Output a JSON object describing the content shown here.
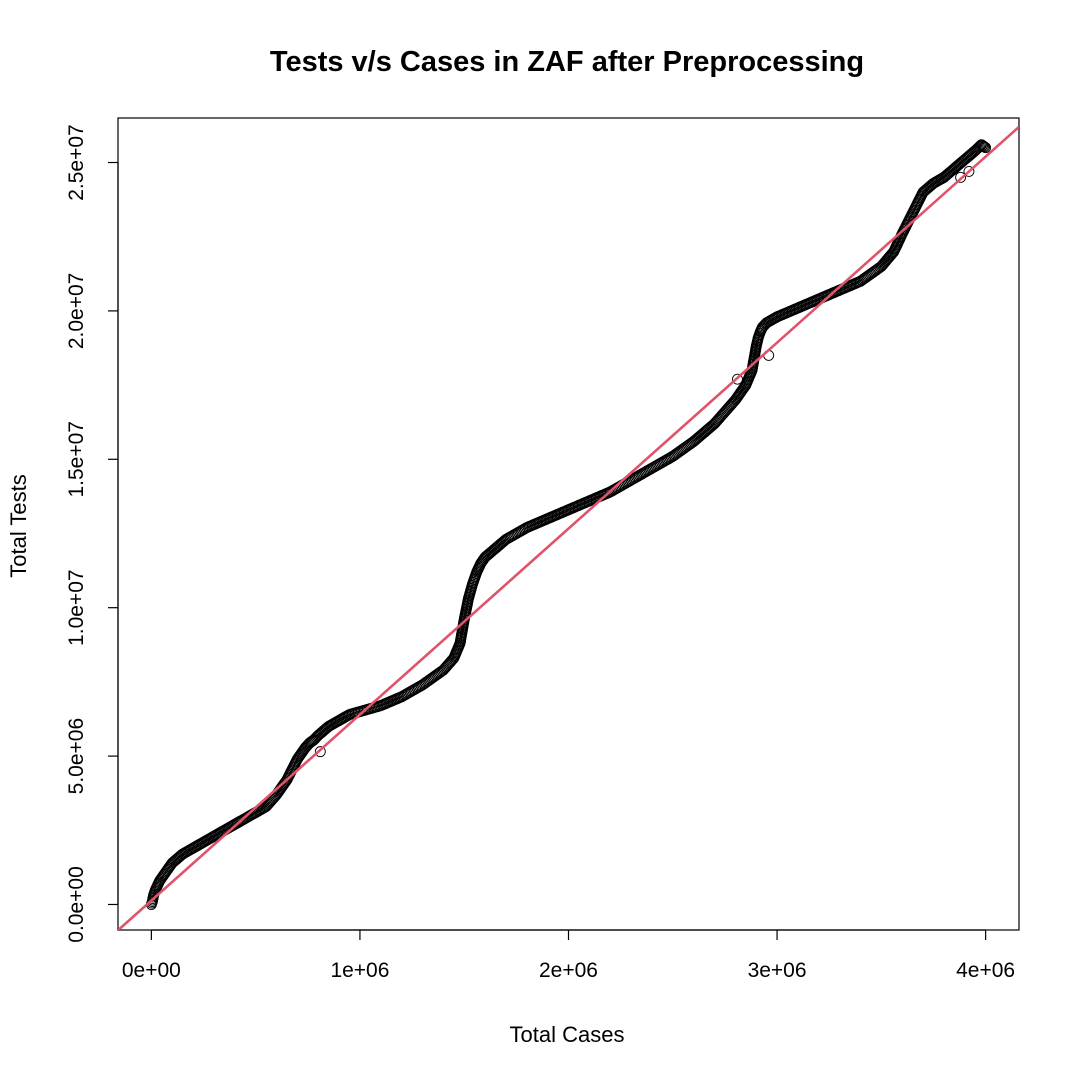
{
  "chart_data": {
    "type": "scatter",
    "title": "Tests v/s Cases in ZAF after Preprocessing",
    "xlabel": "Total Cases",
    "ylabel": "Total Tests",
    "xlim": [
      -160000,
      4160000
    ],
    "ylim": [
      -860000,
      26500000
    ],
    "x_ticks": [
      {
        "value": 0,
        "label": "0e+00"
      },
      {
        "value": 1000000,
        "label": "1e+06"
      },
      {
        "value": 2000000,
        "label": "2e+06"
      },
      {
        "value": 3000000,
        "label": "3e+06"
      },
      {
        "value": 4000000,
        "label": "4e+06"
      }
    ],
    "y_ticks": [
      {
        "value": 0,
        "label": "0.0e+00"
      },
      {
        "value": 5000000,
        "label": "5.0e+06"
      },
      {
        "value": 10000000,
        "label": "1.0e+07"
      },
      {
        "value": 15000000,
        "label": "1.5e+07"
      },
      {
        "value": 20000000,
        "label": "2.0e+07"
      },
      {
        "value": 25000000,
        "label": "2.5e+07"
      }
    ],
    "grid": false,
    "legend": "none",
    "point_style": "open-circle",
    "point_color": "#000000",
    "series": [
      {
        "type": "scatter",
        "x": [
          0,
          5000,
          10000,
          20000,
          40000,
          70000,
          100000,
          150000,
          200000,
          250000,
          300000,
          350000,
          400000,
          450000,
          500000,
          550000,
          600000,
          650000,
          700000,
          720000,
          740000,
          760000,
          780000,
          800000,
          850000,
          900000,
          950000,
          1000000,
          1100000,
          1200000,
          1300000,
          1400000,
          1450000,
          1480000,
          1500000,
          1520000,
          1540000,
          1560000,
          1580000,
          1600000,
          1650000,
          1700000,
          1800000,
          1900000,
          2000000,
          2100000,
          2200000,
          2300000,
          2400000,
          2500000,
          2600000,
          2700000,
          2800000,
          2850000,
          2880000,
          2900000,
          2910000,
          2920000,
          2930000,
          2950000,
          3000000,
          3100000,
          3200000,
          3300000,
          3400000,
          3500000,
          3560000,
          3600000,
          3650000,
          3700000,
          3750000,
          3800000,
          3850000,
          3900000,
          3950000,
          3980000,
          4000000
        ],
        "y": [
          0,
          100000,
          300000,
          500000,
          800000,
          1100000,
          1400000,
          1700000,
          1900000,
          2100000,
          2300000,
          2500000,
          2700000,
          2900000,
          3100000,
          3300000,
          3700000,
          4200000,
          4900000,
          5100000,
          5300000,
          5450000,
          5550000,
          5700000,
          6000000,
          6200000,
          6400000,
          6500000,
          6700000,
          7000000,
          7400000,
          7900000,
          8300000,
          8800000,
          9600000,
          10300000,
          10800000,
          11200000,
          11500000,
          11700000,
          12000000,
          12300000,
          12700000,
          13000000,
          13300000,
          13600000,
          13900000,
          14300000,
          14700000,
          15100000,
          15600000,
          16200000,
          17000000,
          17500000,
          18000000,
          18800000,
          19100000,
          19300000,
          19450000,
          19600000,
          19800000,
          20100000,
          20400000,
          20700000,
          21000000,
          21500000,
          22000000,
          22600000,
          23300000,
          24000000,
          24300000,
          24500000,
          24800000,
          25100000,
          25400000,
          25600000,
          25500000
        ]
      },
      {
        "type": "line",
        "x": [
          -160000,
          4160000
        ],
        "y": [
          -870000,
          26200000
        ],
        "color": "#df536b"
      }
    ],
    "outliers": {
      "x": [
        810000,
        2810000,
        2960000,
        3880000,
        3920000
      ],
      "y": [
        5150000,
        17700000,
        18500000,
        24500000,
        24700000
      ]
    }
  }
}
